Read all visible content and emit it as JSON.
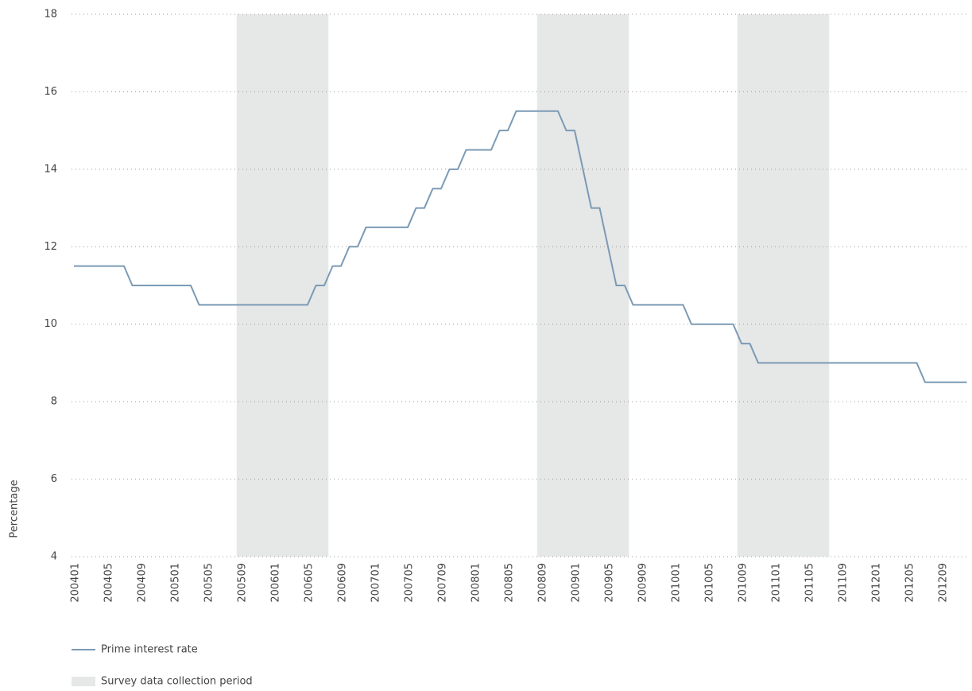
{
  "chart_data": {
    "type": "line",
    "y_label": "Percentage",
    "x": [
      "200401",
      "200402",
      "200403",
      "200404",
      "200405",
      "200406",
      "200407",
      "200408",
      "200409",
      "200410",
      "200411",
      "200412",
      "200501",
      "200502",
      "200503",
      "200504",
      "200505",
      "200506",
      "200507",
      "200508",
      "200509",
      "200510",
      "200511",
      "200512",
      "200601",
      "200602",
      "200603",
      "200604",
      "200605",
      "200606",
      "200607",
      "200608",
      "200609",
      "200610",
      "200611",
      "200612",
      "200701",
      "200702",
      "200703",
      "200704",
      "200705",
      "200706",
      "200707",
      "200708",
      "200709",
      "200710",
      "200711",
      "200712",
      "200801",
      "200802",
      "200803",
      "200804",
      "200805",
      "200806",
      "200807",
      "200808",
      "200809",
      "200810",
      "200811",
      "200812",
      "200901",
      "200902",
      "200903",
      "200904",
      "200905",
      "200906",
      "200907",
      "200908",
      "200909",
      "200910",
      "200911",
      "200912",
      "201001",
      "201002",
      "201003",
      "201004",
      "201005",
      "201006",
      "201007",
      "201008",
      "201009",
      "201010",
      "201011",
      "201012",
      "201101",
      "201102",
      "201103",
      "201104",
      "201105",
      "201106",
      "201107",
      "201108",
      "201109",
      "201110",
      "201111",
      "201112",
      "201201",
      "201202",
      "201203",
      "201204",
      "201205",
      "201206",
      "201207",
      "201208",
      "201209",
      "201210",
      "201211",
      "201212"
    ],
    "xticks": [
      "200401",
      "200405",
      "200409",
      "200501",
      "200505",
      "200509",
      "200601",
      "200605",
      "200609",
      "200701",
      "200705",
      "200709",
      "200801",
      "200805",
      "200809",
      "200901",
      "200905",
      "200909",
      "201001",
      "201005",
      "201009",
      "201101",
      "201105",
      "201109",
      "201201",
      "201205",
      "201209"
    ],
    "series": [
      {
        "name": "Prime interest rate",
        "color": "#7b9ab5",
        "values": [
          11.5,
          11.5,
          11.5,
          11.5,
          11.5,
          11.5,
          11.5,
          11,
          11,
          11,
          11,
          11,
          11,
          11,
          11,
          10.5,
          10.5,
          10.5,
          10.5,
          10.5,
          10.5,
          10.5,
          10.5,
          10.5,
          10.5,
          10.5,
          10.5,
          10.5,
          10.5,
          11,
          11,
          11.5,
          11.5,
          12,
          12,
          12.5,
          12.5,
          12.5,
          12.5,
          12.5,
          12.5,
          13,
          13,
          13.5,
          13.5,
          14,
          14,
          14.5,
          14.5,
          14.5,
          14.5,
          15,
          15,
          15.5,
          15.5,
          15.5,
          15.5,
          15.5,
          15.5,
          15,
          15,
          14,
          13,
          13,
          12,
          11,
          11,
          10.5,
          10.5,
          10.5,
          10.5,
          10.5,
          10.5,
          10.5,
          10,
          10,
          10,
          10,
          10,
          10,
          9.5,
          9.5,
          9,
          9,
          9,
          9,
          9,
          9,
          9,
          9,
          9,
          9,
          9,
          9,
          9,
          9,
          9,
          9,
          9,
          9,
          9,
          9,
          8.5,
          8.5,
          8.5,
          8.5,
          8.5,
          8.5
        ]
      }
    ],
    "bands": {
      "name": "Survey data collection period",
      "color": "#e6e7e7",
      "ranges": [
        [
          "200509",
          "200607"
        ],
        [
          "200809",
          "200907"
        ],
        [
          "201009",
          "201107"
        ]
      ]
    },
    "ylim": [
      4,
      18
    ],
    "yticks": [
      4,
      6,
      8,
      10,
      12,
      14,
      16,
      18
    ],
    "grid": true
  }
}
